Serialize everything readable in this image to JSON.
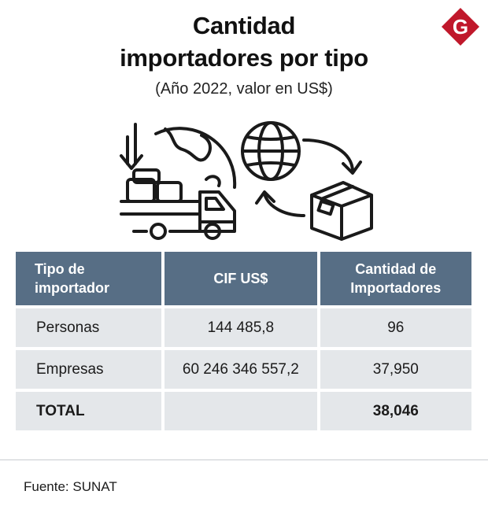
{
  "header": {
    "title_line1": "Cantidad",
    "title_line2": "importadores por tipo",
    "subtitle": "(Año 2022, valor en US$)",
    "logo_letter": "G"
  },
  "colors": {
    "header_bg": "#576e85",
    "cell_bg": "#e4e7ea",
    "logo_red": "#c0182b"
  },
  "table": {
    "headers": [
      {
        "line1": "Tipo de",
        "line2": "importador"
      },
      {
        "line1": "CIF US$",
        "line2": ""
      },
      {
        "line1": "Cantidad de",
        "line2": "Importadores"
      }
    ],
    "rows": [
      {
        "tipo": "Personas",
        "cif": "144 485,8",
        "cantidad": "96"
      },
      {
        "tipo": "Empresas",
        "cif": "60 246 346 557,2",
        "cantidad": "37,950"
      }
    ],
    "total": {
      "tipo": "TOTAL",
      "cif": "",
      "cantidad": "38,046"
    }
  },
  "footer": {
    "source": "Fuente: SUNAT"
  }
}
